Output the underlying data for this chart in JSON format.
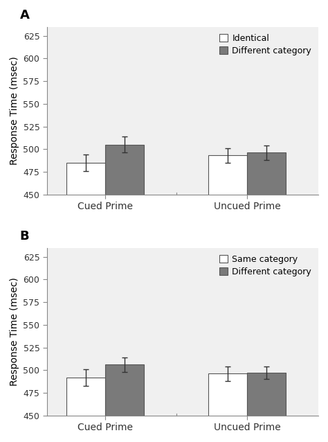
{
  "panel_A": {
    "label": "A",
    "legend_labels": [
      "Identical",
      "Different category"
    ],
    "groups": [
      "Cued Prime",
      "Uncued Prime"
    ],
    "bar1_values": [
      485,
      493
    ],
    "bar2_values": [
      505,
      496
    ],
    "bar1_errors": [
      9,
      8
    ],
    "bar2_errors": [
      9,
      8
    ],
    "bar1_color": "#ffffff",
    "bar2_color": "#7a7a7a",
    "bar_edgecolor": "#555555",
    "ylim": [
      450,
      635
    ],
    "yticks": [
      450,
      475,
      500,
      525,
      550,
      575,
      600,
      625
    ],
    "ylabel": "Response Time (msec)"
  },
  "panel_B": {
    "label": "B",
    "legend_labels": [
      "Same category",
      "Different category"
    ],
    "groups": [
      "Cued Prime",
      "Uncued Prime"
    ],
    "bar1_values": [
      492,
      496
    ],
    "bar2_values": [
      506,
      497
    ],
    "bar1_errors": [
      9,
      8
    ],
    "bar2_errors": [
      8,
      7
    ],
    "bar1_color": "#ffffff",
    "bar2_color": "#7a7a7a",
    "bar_edgecolor": "#555555",
    "ylim": [
      450,
      635
    ],
    "yticks": [
      450,
      475,
      500,
      525,
      550,
      575,
      600,
      625
    ],
    "ylabel": "Response Time (msec)"
  },
  "bar_width": 0.3,
  "group_positions": [
    1.0,
    2.1
  ],
  "background_color": "#ffffff",
  "axes_bg_color": "#f0f0f0",
  "tick_fontsize": 9,
  "label_fontsize": 10,
  "legend_fontsize": 9,
  "panel_label_fontsize": 13,
  "error_capsize": 3,
  "error_linewidth": 1.0
}
